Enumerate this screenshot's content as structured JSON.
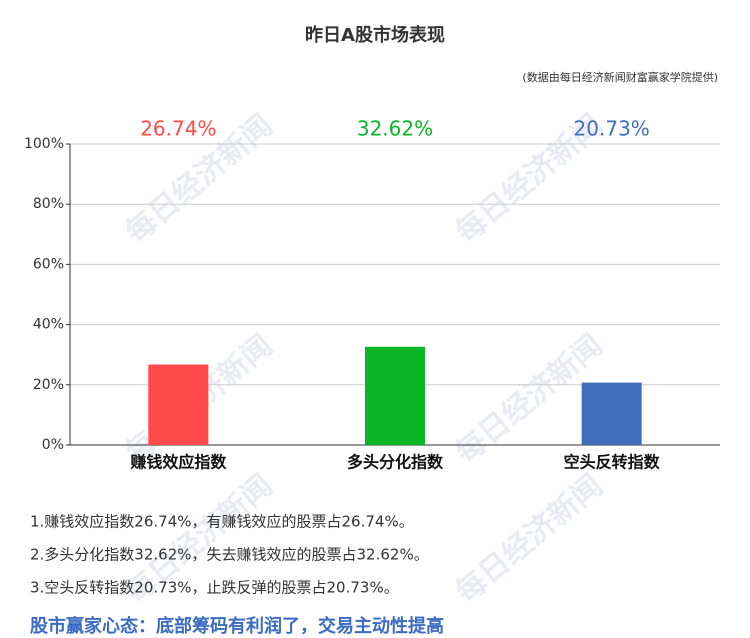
{
  "chart_data": {
    "type": "bar",
    "title": "昨日A股市场表现",
    "source": "(数据由每日经济新闻财富赢家学院提供)",
    "categories": [
      "赚钱效应指数",
      "多头分化指数",
      "空头反转指数"
    ],
    "values": [
      26.74,
      32.62,
      20.73
    ],
    "value_labels": [
      "26.74%",
      "32.62%",
      "20.73%"
    ],
    "colors": [
      "#ff4a4a",
      "#0ab526",
      "#3f6fba"
    ],
    "ylim": [
      0,
      100
    ],
    "yticks": [
      {
        "value": 0,
        "label": "0%"
      },
      {
        "value": 20,
        "label": "20%"
      },
      {
        "value": 40,
        "label": "40%"
      },
      {
        "value": 60,
        "label": "60%"
      },
      {
        "value": 80,
        "label": "80%"
      },
      {
        "value": 100,
        "label": "100%"
      }
    ],
    "grid": true,
    "watermark": "每日经济新闻"
  },
  "notes": [
    "1.赚钱效应指数26.74%，有赚钱效应的股票占26.74%。",
    "2.多头分化指数32.62%，失去赚钱效应的股票占32.62%。",
    "3.空头反转指数20.73%，止跌反弹的股票占20.73%。"
  ],
  "footer": "股市赢家心态：底部筹码有利润了，交易主动性提高"
}
